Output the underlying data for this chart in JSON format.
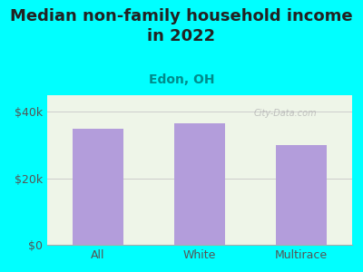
{
  "title": "Median non-family household income\nin 2022",
  "subtitle": "Edon, OH",
  "categories": [
    "All",
    "White",
    "Multirace"
  ],
  "values": [
    35000,
    36500,
    30000
  ],
  "bar_color": "#b39ddb",
  "bg_color": "#00FFFF",
  "plot_bg_color": "#eef5e8",
  "title_fontsize": 13,
  "subtitle_fontsize": 10,
  "subtitle_color": "#008B8B",
  "tick_label_color": "#555555",
  "ylim": [
    0,
    45000
  ],
  "yticks": [
    0,
    20000,
    40000
  ],
  "ytick_labels": [
    "$0",
    "$20k",
    "$40k"
  ],
  "watermark": "City-Data.com"
}
